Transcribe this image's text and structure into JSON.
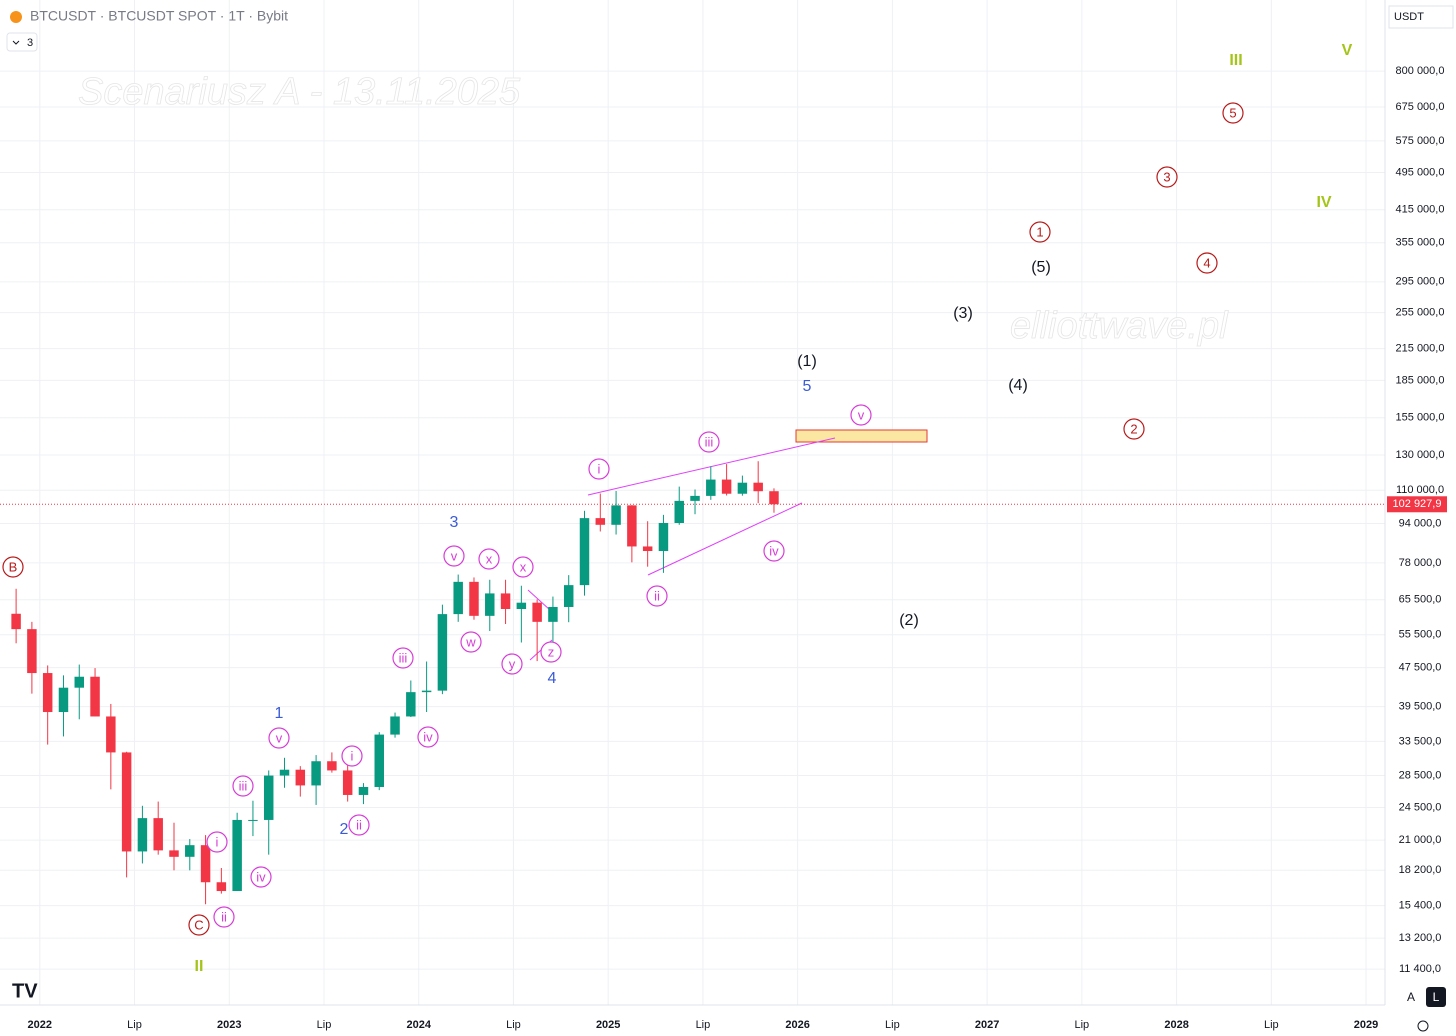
{
  "header": {
    "symbol": "BTCUSDT · BTCUSDT SPOT · 1T · Bybit",
    "indicators": "3",
    "currency": "USDT"
  },
  "chart_data": {
    "type": "candlestick",
    "title": "Scenariusz A - 13.11.2025",
    "watermark": "elliottwave.pl",
    "x": [
      "2021-11",
      "2021-12",
      "2022-01",
      "2022-02",
      "2022-03",
      "2022-04",
      "2022-05",
      "2022-06",
      "2022-07",
      "2022-08",
      "2022-09",
      "2022-10",
      "2022-11",
      "2022-12",
      "2023-01",
      "2023-02",
      "2023-03",
      "2023-04",
      "2023-05",
      "2023-06",
      "2023-07",
      "2023-08",
      "2023-09",
      "2023-10",
      "2023-11",
      "2023-12",
      "2024-01",
      "2024-02",
      "2024-03",
      "2024-04",
      "2024-05",
      "2024-06",
      "2024-07",
      "2024-08",
      "2024-09",
      "2024-10",
      "2024-11",
      "2024-12",
      "2025-01",
      "2025-02",
      "2025-03",
      "2025-04",
      "2025-05",
      "2025-06",
      "2025-07",
      "2025-08",
      "2025-09",
      "2025-10",
      "2025-11"
    ],
    "open": [
      61300,
      57000,
      46300,
      38500,
      43200,
      45500,
      37700,
      31800,
      19900,
      23300,
      20000,
      19400,
      20500,
      17200,
      16500,
      23100,
      23100,
      28500,
      29300,
      27200,
      30500,
      29200,
      26000,
      27000,
      34600,
      37700,
      42300,
      42600,
      61200,
      71300,
      60700,
      67500,
      62700,
      64600,
      59000,
      63300,
      70200,
      96400,
      93400,
      102400,
      84300,
      82500,
      94200,
      104600,
      107100,
      115700,
      108200,
      114000,
      109500
    ],
    "high": [
      69000,
      59000,
      48000,
      45800,
      48200,
      47400,
      40000,
      31900,
      24700,
      25200,
      22800,
      21100,
      21500,
      18400,
      23900,
      25300,
      29200,
      31000,
      29800,
      31400,
      31800,
      30200,
      27500,
      35000,
      38400,
      44700,
      48900,
      64000,
      73800,
      72800,
      72000,
      72000,
      70000,
      65600,
      66500,
      73600,
      99800,
      108300,
      109600,
      102500,
      95000,
      97900,
      111900,
      110400,
      123200,
      124500,
      117900,
      126200,
      111000
    ],
    "low": [
      53300,
      42000,
      33000,
      34300,
      37200,
      37700,
      26700,
      17600,
      18800,
      19600,
      18200,
      18200,
      15500,
      16300,
      16500,
      21400,
      19600,
      26900,
      25800,
      24800,
      28900,
      25200,
      24900,
      26600,
      34100,
      37600,
      38500,
      41900,
      59000,
      59600,
      56500,
      58400,
      53500,
      49000,
      52600,
      58900,
      66800,
      90500,
      89200,
      78200,
      76600,
      74400,
      93400,
      98200,
      105100,
      107300,
      107200,
      103500,
      98900
    ],
    "close": [
      57000,
      46300,
      38500,
      43200,
      45500,
      37700,
      31800,
      19900,
      23300,
      20000,
      19400,
      20500,
      17200,
      16500,
      23100,
      23100,
      28500,
      29300,
      27200,
      30500,
      29200,
      26000,
      27000,
      34600,
      37700,
      42300,
      42600,
      61200,
      71300,
      60700,
      67500,
      62700,
      64600,
      59000,
      63300,
      70200,
      96400,
      93400,
      102400,
      84300,
      82500,
      94200,
      104600,
      107100,
      115700,
      108200,
      114000,
      109500,
      102927.9
    ],
    "up_color": "#089981",
    "down_color": "#f23645",
    "log_scale": true,
    "grid": true,
    "xlim": [
      2021.79,
      2029.1
    ],
    "xticks": [
      2022,
      {
        "value": 2022.5,
        "label": "Lip"
      },
      2023,
      {
        "value": 2023.5,
        "label": "Lip"
      },
      2024,
      {
        "value": 2024.5,
        "label": "Lip"
      },
      2025,
      {
        "value": 2025.5,
        "label": "Lip"
      },
      2026,
      {
        "value": 2026.5,
        "label": "Lip"
      },
      2027,
      {
        "value": 2027.5,
        "label": "Lip"
      },
      2028,
      {
        "value": 2028.5,
        "label": "Lip"
      },
      2029
    ],
    "ylim": [
      9620,
      1120000
    ],
    "yticks": [
      {
        "value": 800000,
        "label": "800 000,0"
      },
      {
        "value": 675000,
        "label": "675 000,0"
      },
      {
        "value": 575000,
        "label": "575 000,0"
      },
      {
        "value": 495000,
        "label": "495 000,0"
      },
      {
        "value": 415000,
        "label": "415 000,0"
      },
      {
        "value": 355000,
        "label": "355 000,0"
      },
      {
        "value": 295000,
        "label": "295 000,0"
      },
      {
        "value": 255000,
        "label": "255 000,0"
      },
      {
        "value": 215000,
        "label": "215 000,0"
      },
      {
        "value": 185000,
        "label": "185 000,0"
      },
      {
        "value": 155000,
        "label": "155 000,0"
      },
      {
        "value": 130000,
        "label": "130 000,0"
      },
      {
        "value": 110000,
        "label": "110 000,0"
      },
      {
        "value": 94000,
        "label": "94 000,0"
      },
      {
        "value": 78000,
        "label": "78 000,0"
      },
      {
        "value": 65500,
        "label": "65 500,0"
      },
      {
        "value": 55500,
        "label": "55 500,0"
      },
      {
        "value": 47500,
        "label": "47 500,0"
      },
      {
        "value": 39500,
        "label": "39 500,0"
      },
      {
        "value": 33500,
        "label": "33 500,0"
      },
      {
        "value": 28500,
        "label": "28 500,0"
      },
      {
        "value": 24500,
        "label": "24 500,0"
      },
      {
        "value": 21000,
        "label": "21 000,0"
      },
      {
        "value": 18200,
        "label": "18 200,0"
      },
      {
        "value": 15400,
        "label": "15 400,0"
      },
      {
        "value": 13200,
        "label": "13 200,0"
      },
      {
        "value": 11400,
        "label": "11 400,0"
      }
    ],
    "last_price": {
      "value": 102927.9,
      "label": "102 927,9"
    },
    "annotations": [
      "i",
      "iii",
      "v",
      "iv",
      "ii",
      "v",
      "x",
      "x",
      "w",
      "iii",
      "y",
      "z",
      "iv",
      "i",
      "ii",
      "v",
      "iii",
      "i",
      "iv",
      "ii",
      "B",
      "C",
      "1",
      "2",
      "3",
      "4",
      "5",
      "3",
      "4",
      "1",
      "2",
      "5",
      "(1)",
      "(2)",
      "(3)",
      "(4)",
      "(5)",
      "II",
      "III",
      "IV",
      "V"
    ]
  },
  "footer": {
    "auto": "A",
    "log": "L"
  }
}
